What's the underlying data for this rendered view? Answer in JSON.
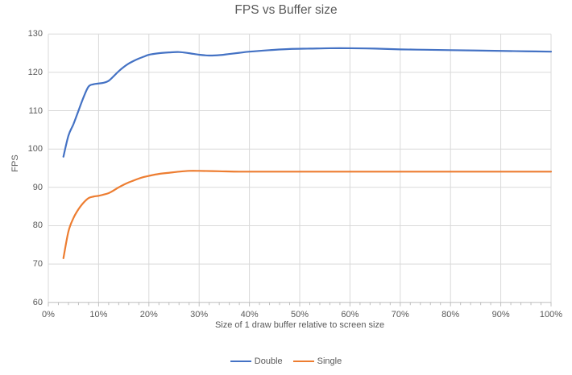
{
  "chart": {
    "title": "FPS vs Buffer size",
    "x_axis_title": "Size of 1 draw buffer relative to screen size",
    "y_axis_title": "FPS",
    "colors": {
      "series_double": "#4472C4",
      "series_single": "#ED7D31",
      "gridline": "#D9D9D9",
      "axis_line": "#BFBFBF",
      "text": "#595959",
      "background": "#FFFFFF"
    }
  },
  "chart_data": {
    "type": "line",
    "title": "FPS vs Buffer size",
    "xlabel": "Size of 1 draw buffer relative to screen size",
    "ylabel": "FPS",
    "xlim": [
      0,
      100
    ],
    "ylim": [
      60,
      130
    ],
    "grid": true,
    "line_style": "smooth",
    "legend_position": "bottom",
    "x_tick_values": [
      0,
      10,
      20,
      30,
      40,
      50,
      60,
      70,
      80,
      90,
      100
    ],
    "x_tick_labels": [
      "0%",
      "10%",
      "20%",
      "30%",
      "40%",
      "50%",
      "60%",
      "70%",
      "80%",
      "90%",
      "100%"
    ],
    "x_minor_tick_step": 2,
    "y_tick_values": [
      60,
      70,
      80,
      90,
      100,
      110,
      120,
      130
    ],
    "y_tick_labels": [
      "60",
      "70",
      "80",
      "90",
      "100",
      "110",
      "120",
      "130"
    ],
    "series": [
      {
        "name": "Double",
        "color": "#4472C4",
        "x": [
          3,
          4,
          5,
          6,
          7,
          8,
          9,
          10,
          11,
          12,
          13,
          14,
          15,
          16,
          17,
          18,
          19,
          20,
          22,
          24,
          26,
          28,
          30,
          32,
          34,
          36,
          38,
          40,
          44,
          48,
          52,
          56,
          60,
          65,
          70,
          75,
          80,
          85,
          90,
          95,
          100
        ],
        "y": [
          98,
          103.5,
          106.5,
          110,
          113.5,
          116.3,
          116.9,
          117.1,
          117.3,
          117.8,
          119,
          120.3,
          121.4,
          122.3,
          123,
          123.6,
          124.1,
          124.6,
          125,
          125.2,
          125.3,
          125,
          124.6,
          124.4,
          124.5,
          124.8,
          125.1,
          125.4,
          125.8,
          126.1,
          126.2,
          126.3,
          126.3,
          126.2,
          126,
          125.9,
          125.8,
          125.7,
          125.6,
          125.5,
          125.4
        ]
      },
      {
        "name": "Single",
        "color": "#ED7D31",
        "x": [
          3,
          4,
          5,
          6,
          7,
          8,
          9,
          10,
          11,
          12,
          13,
          14,
          15,
          16,
          17,
          18,
          19,
          20,
          22,
          24,
          26,
          28,
          30,
          34,
          38,
          42,
          46,
          50,
          60,
          70,
          80,
          90,
          100
        ],
        "y": [
          71.5,
          78.5,
          82,
          84.3,
          86,
          87.2,
          87.6,
          87.8,
          88.1,
          88.5,
          89.2,
          90,
          90.7,
          91.3,
          91.8,
          92.3,
          92.7,
          93,
          93.5,
          93.8,
          94.1,
          94.3,
          94.3,
          94.2,
          94.1,
          94.1,
          94.1,
          94.1,
          94.1,
          94.1,
          94.1,
          94.1,
          94.1
        ]
      }
    ]
  }
}
